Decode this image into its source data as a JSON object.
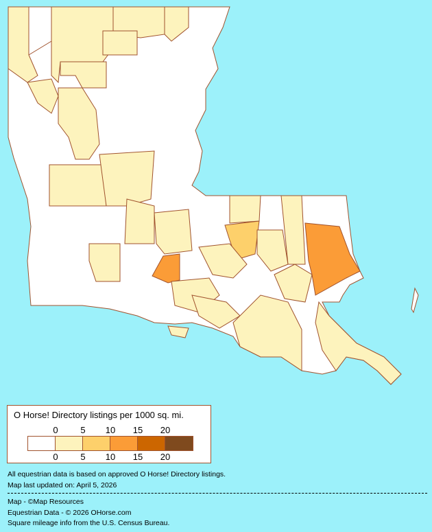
{
  "legend": {
    "title": "O Horse! Directory listings per 1000 sq. mi.",
    "ticks": [
      "0",
      "5",
      "10",
      "15",
      "20"
    ],
    "colors": [
      "#ffffff",
      "#fdf3bd",
      "#fdd06b",
      "#fb9c37",
      "#cc6600",
      "#7f4a1e"
    ]
  },
  "notes": {
    "line1": "All equestrian data is based on approved O Horse! Directory listings.",
    "line2": "Map last updated on: April 5, 2026"
  },
  "credits": {
    "map": "Map - ©Map Resources",
    "data": "Equestrian Data - © 2026 OHorse.com",
    "census": "Square mileage info from the U.S. Census Bureau."
  },
  "colors": {
    "background": "#9cf1fa",
    "border": "#a0522d"
  }
}
